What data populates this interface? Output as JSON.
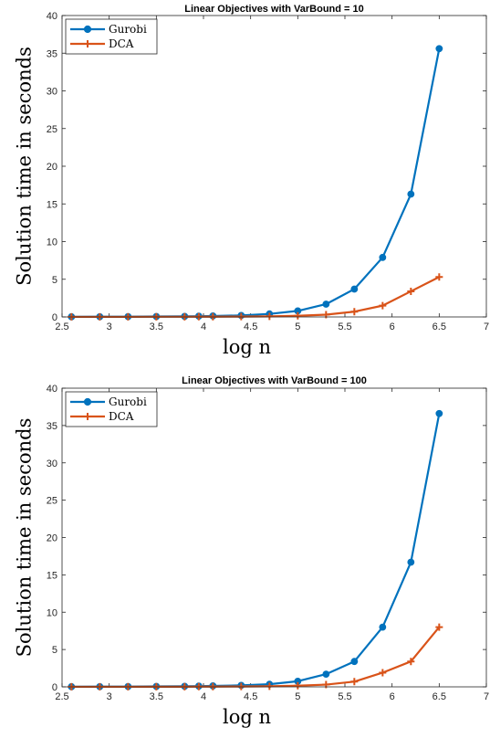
{
  "colors": {
    "gurobi": "#0072BD",
    "dca": "#D95319",
    "axis": "#262626"
  },
  "chart_data": [
    {
      "type": "line",
      "title": "Linear Objectives with VarBound = 10",
      "xlabel": "log n",
      "ylabel": "Solution time in seconds",
      "xlim": [
        2.5,
        7
      ],
      "ylim": [
        0,
        40
      ],
      "xticks": [
        2.5,
        3,
        3.5,
        4,
        4.5,
        5,
        5.5,
        6,
        6.5,
        7
      ],
      "yticks": [
        0,
        5,
        10,
        15,
        20,
        25,
        30,
        35,
        40
      ],
      "legend": "top-left",
      "x": [
        2.6,
        2.9,
        3.2,
        3.5,
        3.8,
        3.95,
        4.1,
        4.4,
        4.7,
        5.0,
        5.3,
        5.6,
        5.9,
        6.2,
        6.5
      ],
      "series": [
        {
          "name": "Gurobi",
          "marker": "circle",
          "values": [
            0.02,
            0.03,
            0.04,
            0.06,
            0.08,
            0.1,
            0.13,
            0.2,
            0.4,
            0.8,
            1.7,
            3.7,
            7.9,
            16.3,
            35.6
          ]
        },
        {
          "name": "DCA",
          "marker": "plus",
          "values": [
            0.01,
            0.01,
            0.01,
            0.02,
            0.02,
            0.03,
            0.03,
            0.05,
            0.08,
            0.15,
            0.3,
            0.7,
            1.5,
            3.4,
            5.3
          ]
        }
      ]
    },
    {
      "type": "line",
      "title": "Linear Objectives with VarBound = 100",
      "xlabel": "log n",
      "ylabel": "Solution time in seconds",
      "xlim": [
        2.5,
        7
      ],
      "ylim": [
        0,
        40
      ],
      "xticks": [
        2.5,
        3,
        3.5,
        4,
        4.5,
        5,
        5.5,
        6,
        6.5,
        7
      ],
      "yticks": [
        0,
        5,
        10,
        15,
        20,
        25,
        30,
        35,
        40
      ],
      "legend": "top-left",
      "x": [
        2.6,
        2.9,
        3.2,
        3.5,
        3.8,
        3.95,
        4.1,
        4.4,
        4.7,
        5.0,
        5.3,
        5.6,
        5.9,
        6.2,
        6.5
      ],
      "series": [
        {
          "name": "Gurobi",
          "marker": "circle",
          "values": [
            0.02,
            0.03,
            0.04,
            0.06,
            0.08,
            0.1,
            0.13,
            0.2,
            0.35,
            0.75,
            1.7,
            3.4,
            8.0,
            16.7,
            36.6
          ]
        },
        {
          "name": "DCA",
          "marker": "plus",
          "values": [
            0.01,
            0.01,
            0.01,
            0.02,
            0.02,
            0.03,
            0.03,
            0.05,
            0.08,
            0.15,
            0.3,
            0.7,
            1.9,
            3.4,
            8.0
          ]
        }
      ]
    }
  ]
}
